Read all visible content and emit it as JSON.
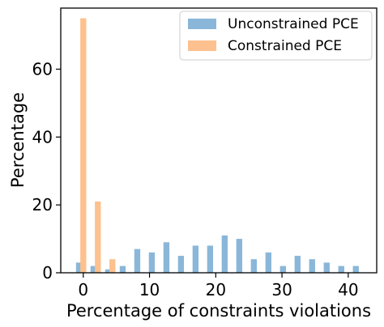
{
  "chart_data": {
    "type": "bar",
    "xlabel": "Percentage of constraints violations",
    "ylabel": "Percentage",
    "xlim": [
      -3.4,
      44.3
    ],
    "ylim": [
      0,
      78
    ],
    "xticks": [
      0,
      10,
      20,
      30,
      40
    ],
    "yticks": [
      0,
      20,
      40,
      60
    ],
    "grid": false,
    "legend": "top-right",
    "series": [
      {
        "name": "Unconstrained PCE",
        "color": "#8ab7d9",
        "x": [
          -0.65,
          1.55,
          3.75,
          5.95,
          8.15,
          10.35,
          12.55,
          14.75,
          16.95,
          19.15,
          21.35,
          23.55,
          25.75,
          27.95,
          30.15,
          32.35,
          34.55,
          36.75,
          38.95,
          41.15
        ],
        "values": [
          3,
          2,
          1,
          2,
          7,
          6,
          9,
          5,
          8,
          8,
          11,
          10,
          4,
          6,
          2,
          5,
          4,
          3,
          2,
          2
        ]
      },
      {
        "name": "Constrained PCE",
        "color": "#fcc18e",
        "x": [
          0.0,
          2.2,
          4.4
        ],
        "values": [
          75,
          21,
          4
        ]
      }
    ],
    "bar_width": 0.9
  }
}
